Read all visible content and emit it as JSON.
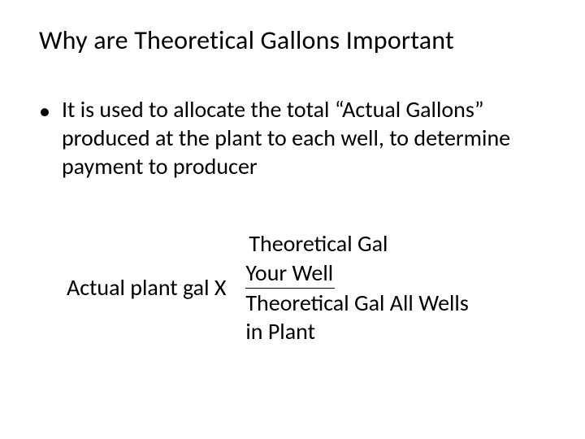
{
  "title": "Why are Theoretical Gallons Important",
  "bullet": {
    "marker": "•",
    "text": "It is used to allocate the total “Actual Gallons” produced at the plant to each well, to determine payment to producer"
  },
  "formula": {
    "left": "Actual plant gal X",
    "numerator_line1": "Theoretical Gal",
    "numerator_line2": "Your Well",
    "denominator_line1": "Theoretical Gal All Wells",
    "denominator_line2": "in Plant"
  },
  "colors": {
    "background": "#ffffff",
    "text": "#000000"
  },
  "fonts": {
    "title_size": 32,
    "body_size": 28,
    "family": "Calibri"
  }
}
